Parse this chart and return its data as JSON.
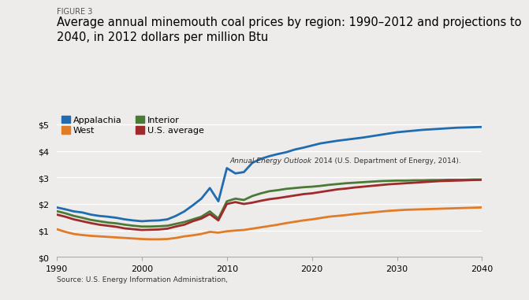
{
  "title_figure": "FIGURE 3",
  "title_line1": "Average annual minemouth coal prices by region: 1990–2012 and projections to",
  "title_line2": "2040, in 2012 dollars per million Btu",
  "source_normal": "Source: U.S. Energy Information Administration, ",
  "source_italic": "Annual Energy Outlook",
  "source_normal2": " 2014 (U.S. Department of Energy, 2014).",
  "background_color": "#edecea",
  "ylim": [
    0,
    5.5
  ],
  "yticks": [
    0,
    1,
    2,
    3,
    4,
    5
  ],
  "ytick_labels": [
    "$0",
    "$1",
    "$2",
    "$3",
    "$4",
    "$5"
  ],
  "xticks": [
    1990,
    2000,
    2010,
    2020,
    2030,
    2040
  ],
  "series_order": [
    "Appalachia",
    "West",
    "Interior",
    "U.S. average"
  ],
  "series": {
    "Appalachia": {
      "color": "#1f6cb0",
      "linewidth": 2.0,
      "years": [
        1990,
        1991,
        1992,
        1993,
        1994,
        1995,
        1996,
        1997,
        1998,
        1999,
        2000,
        2001,
        2002,
        2003,
        2004,
        2005,
        2006,
        2007,
        2008,
        2009,
        2010,
        2011,
        2012,
        2013,
        2014,
        2015,
        2016,
        2017,
        2018,
        2019,
        2020,
        2021,
        2022,
        2023,
        2024,
        2025,
        2026,
        2027,
        2028,
        2029,
        2030,
        2031,
        2032,
        2033,
        2034,
        2035,
        2036,
        2037,
        2038,
        2039,
        2040
      ],
      "values": [
        1.87,
        1.8,
        1.72,
        1.68,
        1.6,
        1.55,
        1.52,
        1.48,
        1.42,
        1.38,
        1.35,
        1.37,
        1.38,
        1.42,
        1.55,
        1.72,
        1.95,
        2.2,
        2.6,
        2.1,
        3.35,
        3.15,
        3.2,
        3.55,
        3.7,
        3.8,
        3.88,
        3.95,
        4.05,
        4.12,
        4.2,
        4.28,
        4.33,
        4.38,
        4.42,
        4.46,
        4.5,
        4.55,
        4.6,
        4.65,
        4.7,
        4.73,
        4.76,
        4.79,
        4.81,
        4.83,
        4.85,
        4.87,
        4.88,
        4.89,
        4.9
      ]
    },
    "West": {
      "color": "#e07b27",
      "linewidth": 2.0,
      "years": [
        1990,
        1991,
        1992,
        1993,
        1994,
        1995,
        1996,
        1997,
        1998,
        1999,
        2000,
        2001,
        2002,
        2003,
        2004,
        2005,
        2006,
        2007,
        2008,
        2009,
        2010,
        2011,
        2012,
        2013,
        2014,
        2015,
        2016,
        2017,
        2018,
        2019,
        2020,
        2021,
        2022,
        2023,
        2024,
        2025,
        2026,
        2027,
        2028,
        2029,
        2030,
        2031,
        2032,
        2033,
        2034,
        2035,
        2036,
        2037,
        2038,
        2039,
        2040
      ],
      "values": [
        1.05,
        0.95,
        0.87,
        0.83,
        0.8,
        0.78,
        0.76,
        0.74,
        0.72,
        0.7,
        0.68,
        0.67,
        0.67,
        0.68,
        0.72,
        0.78,
        0.82,
        0.87,
        0.95,
        0.92,
        0.97,
        1.0,
        1.02,
        1.07,
        1.12,
        1.17,
        1.22,
        1.28,
        1.33,
        1.38,
        1.42,
        1.47,
        1.52,
        1.55,
        1.58,
        1.62,
        1.65,
        1.68,
        1.71,
        1.74,
        1.76,
        1.78,
        1.79,
        1.8,
        1.81,
        1.82,
        1.83,
        1.84,
        1.85,
        1.86,
        1.87
      ]
    },
    "Interior": {
      "color": "#4a7a35",
      "linewidth": 2.0,
      "years": [
        1990,
        1991,
        1992,
        1993,
        1994,
        1995,
        1996,
        1997,
        1998,
        1999,
        2000,
        2001,
        2002,
        2003,
        2004,
        2005,
        2006,
        2007,
        2008,
        2009,
        2010,
        2011,
        2012,
        2013,
        2014,
        2015,
        2016,
        2017,
        2018,
        2019,
        2020,
        2021,
        2022,
        2023,
        2024,
        2025,
        2026,
        2027,
        2028,
        2029,
        2030,
        2031,
        2032,
        2033,
        2034,
        2035,
        2036,
        2037,
        2038,
        2039,
        2040
      ],
      "values": [
        1.73,
        1.65,
        1.55,
        1.48,
        1.4,
        1.35,
        1.3,
        1.27,
        1.22,
        1.18,
        1.15,
        1.15,
        1.16,
        1.18,
        1.25,
        1.32,
        1.42,
        1.52,
        1.72,
        1.45,
        2.1,
        2.2,
        2.15,
        2.3,
        2.4,
        2.48,
        2.52,
        2.57,
        2.6,
        2.63,
        2.65,
        2.68,
        2.72,
        2.75,
        2.78,
        2.8,
        2.82,
        2.84,
        2.86,
        2.87,
        2.88,
        2.88,
        2.89,
        2.89,
        2.9,
        2.9,
        2.91,
        2.91,
        2.91,
        2.92,
        2.92
      ]
    },
    "U.S. average": {
      "color": "#9e2a2b",
      "linewidth": 2.0,
      "years": [
        1990,
        1991,
        1992,
        1993,
        1994,
        1995,
        1996,
        1997,
        1998,
        1999,
        2000,
        2001,
        2002,
        2003,
        2004,
        2005,
        2006,
        2007,
        2008,
        2009,
        2010,
        2011,
        2012,
        2013,
        2014,
        2015,
        2016,
        2017,
        2018,
        2019,
        2020,
        2021,
        2022,
        2023,
        2024,
        2025,
        2026,
        2027,
        2028,
        2029,
        2030,
        2031,
        2032,
        2033,
        2034,
        2035,
        2036,
        2037,
        2038,
        2039,
        2040
      ],
      "values": [
        1.6,
        1.52,
        1.42,
        1.35,
        1.28,
        1.22,
        1.18,
        1.14,
        1.08,
        1.05,
        1.02,
        1.03,
        1.04,
        1.07,
        1.15,
        1.22,
        1.35,
        1.45,
        1.62,
        1.38,
        2.0,
        2.07,
        2.0,
        2.05,
        2.12,
        2.18,
        2.22,
        2.27,
        2.32,
        2.37,
        2.4,
        2.45,
        2.5,
        2.55,
        2.58,
        2.62,
        2.65,
        2.68,
        2.71,
        2.74,
        2.76,
        2.78,
        2.8,
        2.82,
        2.84,
        2.86,
        2.87,
        2.88,
        2.89,
        2.9,
        2.91
      ]
    }
  },
  "legend": [
    {
      "label": "Appalachia",
      "color": "#1f6cb0"
    },
    {
      "label": "West",
      "color": "#e07b27"
    },
    {
      "label": "Interior",
      "color": "#4a7a35"
    },
    {
      "label": "U.S. average",
      "color": "#9e2a2b"
    }
  ]
}
